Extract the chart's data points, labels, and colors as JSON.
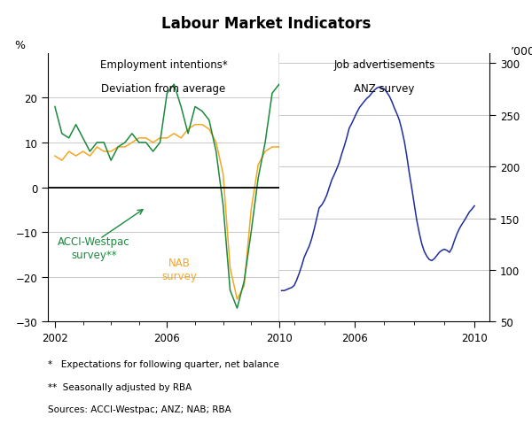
{
  "title": "Labour Market Indicators",
  "left_title1": "Employment intentions*",
  "left_title2": "Deviation from average",
  "right_title1": "Job advertisements",
  "right_title2": "ANZ survey",
  "left_ylabel": "%",
  "right_ylabel": "’000",
  "left_ylim": [
    -30,
    30
  ],
  "right_ylim": [
    50,
    310
  ],
  "left_yticks": [
    -30,
    -20,
    -10,
    0,
    10,
    20
  ],
  "right_yticks": [
    50,
    100,
    150,
    200,
    250,
    300
  ],
  "footnote1": "*   Expectations for following quarter, net balance",
  "footnote2": "**  Seasonally adjusted by RBA",
  "footnote3": "Sources: ACCI-Westpac; ANZ; NAB; RBA",
  "acci_color": "#1a8a3c",
  "nab_color": "#f5a623",
  "anz_color": "#1f2d9e",
  "zero_line_color": "#000000",
  "grid_color": "#c8c8c8",
  "acci_label": "ACCI-Westpac\nsurvey**",
  "nab_label": "NAB\nsurvey",
  "acci_x": [
    2002.0,
    2002.25,
    2002.5,
    2002.75,
    2003.0,
    2003.25,
    2003.5,
    2003.75,
    2004.0,
    2004.25,
    2004.5,
    2004.75,
    2005.0,
    2005.25,
    2005.5,
    2005.75,
    2006.0,
    2006.25,
    2006.5,
    2006.75,
    2007.0,
    2007.25,
    2007.5,
    2007.75,
    2008.0,
    2008.25,
    2008.5,
    2008.75,
    2009.0,
    2009.25,
    2009.5,
    2009.75,
    2010.0
  ],
  "acci_y": [
    18,
    12,
    11,
    14,
    11,
    8,
    10,
    10,
    6,
    9,
    10,
    12,
    10,
    10,
    8,
    10,
    21,
    23,
    18,
    12,
    18,
    17,
    15,
    8,
    -4,
    -23,
    -27,
    -21,
    -10,
    2,
    10,
    21,
    23
  ],
  "nab_x": [
    2002.0,
    2002.25,
    2002.5,
    2002.75,
    2003.0,
    2003.25,
    2003.5,
    2003.75,
    2004.0,
    2004.25,
    2004.5,
    2004.75,
    2005.0,
    2005.25,
    2005.5,
    2005.75,
    2006.0,
    2006.25,
    2006.5,
    2006.75,
    2007.0,
    2007.25,
    2007.5,
    2007.75,
    2008.0,
    2008.25,
    2008.5,
    2008.75,
    2009.0,
    2009.25,
    2009.5,
    2009.75,
    2010.0
  ],
  "nab_y": [
    7,
    6,
    8,
    7,
    8,
    7,
    9,
    8,
    8,
    9,
    9,
    10,
    11,
    11,
    10,
    11,
    11,
    12,
    11,
    13,
    14,
    14,
    13,
    10,
    3,
    -18,
    -25,
    -22,
    -5,
    5,
    8,
    9,
    9
  ],
  "anz_x": [
    2003.58,
    2003.67,
    2003.75,
    2003.83,
    2003.92,
    2004.0,
    2004.08,
    2004.17,
    2004.25,
    2004.33,
    2004.42,
    2004.5,
    2004.58,
    2004.67,
    2004.75,
    2004.83,
    2004.92,
    2005.0,
    2005.08,
    2005.17,
    2005.25,
    2005.33,
    2005.42,
    2005.5,
    2005.58,
    2005.67,
    2005.75,
    2005.83,
    2005.92,
    2006.0,
    2006.08,
    2006.17,
    2006.25,
    2006.33,
    2006.42,
    2006.5,
    2006.58,
    2006.67,
    2006.75,
    2006.83,
    2006.92,
    2007.0,
    2007.08,
    2007.17,
    2007.25,
    2007.33,
    2007.42,
    2007.5,
    2007.58,
    2007.67,
    2007.75,
    2007.83,
    2007.92,
    2008.0,
    2008.08,
    2008.17,
    2008.25,
    2008.33,
    2008.42,
    2008.5,
    2008.58,
    2008.67,
    2008.75,
    2008.83,
    2008.92,
    2009.0,
    2009.08,
    2009.17,
    2009.25,
    2009.33,
    2009.42,
    2009.5,
    2009.58,
    2009.67,
    2009.75,
    2009.83,
    2009.92,
    2010.0
  ],
  "anz_y": [
    80,
    80,
    81,
    82,
    83,
    85,
    90,
    97,
    104,
    112,
    118,
    123,
    130,
    140,
    150,
    160,
    163,
    167,
    172,
    180,
    187,
    192,
    198,
    204,
    212,
    220,
    228,
    237,
    242,
    247,
    252,
    257,
    260,
    263,
    266,
    268,
    271,
    274,
    276,
    277,
    276,
    275,
    272,
    268,
    263,
    257,
    251,
    245,
    236,
    224,
    210,
    194,
    178,
    163,
    148,
    135,
    125,
    118,
    113,
    110,
    109,
    111,
    114,
    117,
    119,
    120,
    119,
    117,
    121,
    128,
    135,
    140,
    144,
    148,
    152,
    156,
    159,
    162
  ]
}
